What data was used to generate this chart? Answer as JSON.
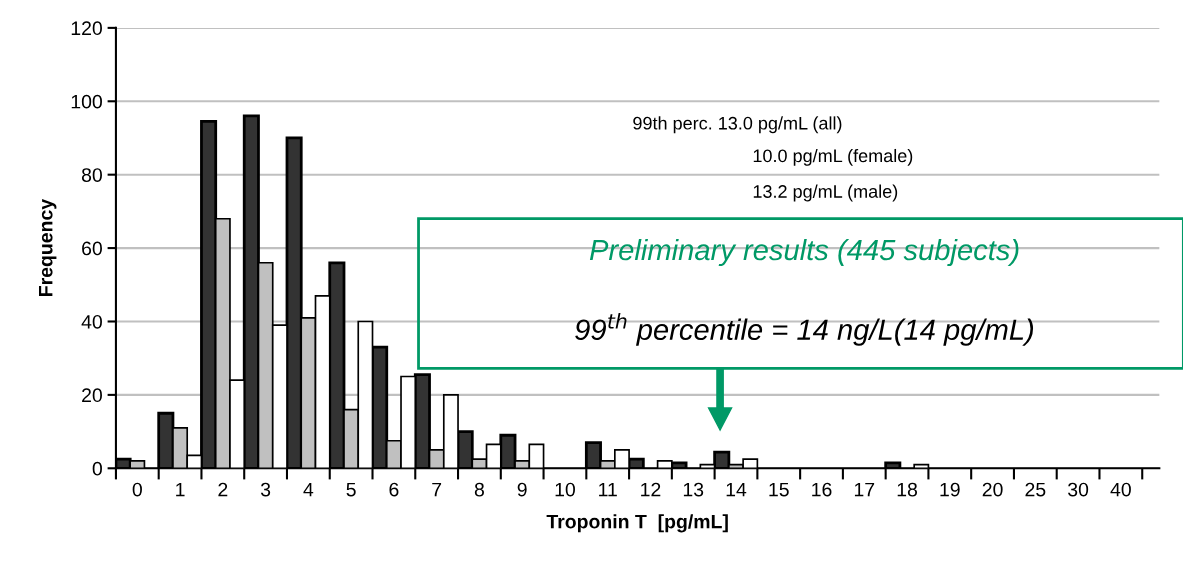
{
  "chart_data": {
    "type": "bar",
    "xlabel": "Troponin T  [pg/mL]",
    "ylabel": "Frequency",
    "categories": [
      "0",
      "1",
      "2",
      "3",
      "4",
      "5",
      "6",
      "7",
      "8",
      "9",
      "10",
      "11",
      "12",
      "13",
      "14",
      "15",
      "16",
      "17",
      "18",
      "19",
      "20",
      "25",
      "30",
      "40"
    ],
    "series": [
      {
        "color": "#333333",
        "values": [
          2.5,
          15,
          94.5,
          96,
          90,
          56,
          33,
          25.5,
          10,
          9,
          null,
          7,
          2.5,
          1.5,
          4.4,
          null,
          null,
          null,
          1.5,
          null,
          null,
          null,
          null,
          null
        ]
      },
      {
        "color": "#c0c0c0",
        "values": [
          2,
          11,
          68,
          56,
          41,
          16,
          7.5,
          5,
          2.5,
          2,
          null,
          2,
          null,
          null,
          1,
          null,
          null,
          null,
          null,
          null,
          null,
          null,
          null,
          null
        ]
      },
      {
        "color": "#ffffff",
        "values": [
          null,
          3.5,
          24,
          39,
          47,
          40,
          25,
          20,
          6.5,
          6.5,
          null,
          5,
          2,
          1,
          2.5,
          null,
          null,
          null,
          1,
          null,
          null,
          null,
          null,
          null
        ]
      }
    ],
    "ylim": [
      0,
      120
    ],
    "yticks": [
      0,
      20,
      40,
      60,
      80,
      100,
      120
    ],
    "grid": "y",
    "legend": false,
    "annotations": [
      "99th perc. 13.0 pg/mL (all)",
      "10.0 pg/mL (female)",
      "13.2 pg/mL (male)",
      "Preliminary results (445 subjects)",
      "99$^{th}$ percentile = 14 ng/L(14 pg/mL)"
    ]
  }
}
